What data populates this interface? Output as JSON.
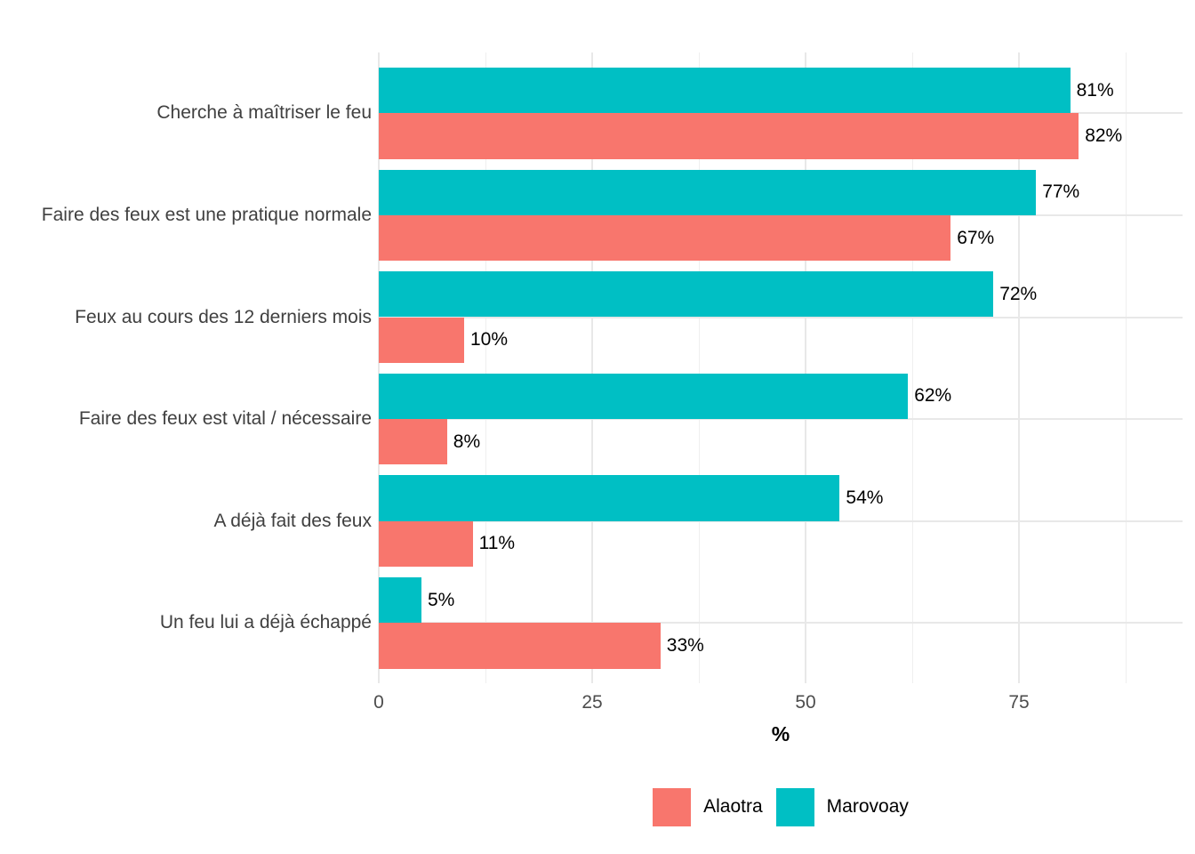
{
  "chart_data": {
    "type": "bar",
    "orientation": "horizontal",
    "title": "",
    "xlabel": "%",
    "ylabel": "",
    "categories": [
      "Cherche à maîtriser le feu",
      "Faire des feux est une pratique normale",
      "Feux au cours des 12 derniers mois",
      "Faire des feux est vital / nécessaire",
      "A déjà fait des feux",
      "Un feu lui a déjà échappé"
    ],
    "series": [
      {
        "name": "Alaotra",
        "color": "#F8766D",
        "values": [
          82,
          67,
          10,
          8,
          11,
          33
        ]
      },
      {
        "name": "Marovoay",
        "color": "#00BFC4",
        "values": [
          81,
          77,
          72,
          62,
          54,
          5
        ]
      }
    ],
    "group_bar_order_top_to_bottom": [
      "Marovoay",
      "Alaotra"
    ],
    "value_label_suffix": "%",
    "x_major_ticks": [
      0,
      25,
      50,
      75
    ],
    "x_minor_ticks": [
      12.5,
      37.5,
      62.5,
      87.5
    ],
    "xlim": [
      0,
      94
    ],
    "grid": {
      "vertical_major": true,
      "vertical_minor": true,
      "horizontal_major_at_category_centers": true,
      "horizontal_minor": false
    },
    "legend_position": "bottom-center"
  },
  "legend": {
    "items": [
      {
        "label": "Alaotra",
        "color": "#F8766D"
      },
      {
        "label": "Marovoay",
        "color": "#00BFC4"
      }
    ]
  },
  "colors": {
    "background": "#FFFFFF",
    "grid_major": "#E8E8E8",
    "grid_minor": "#EFEFEF",
    "axis_tick_text": "#4D4D4D",
    "category_text": "#404040",
    "value_label_text": "#000000",
    "legend_text": "#000000",
    "axis_title_text": "#000000"
  }
}
